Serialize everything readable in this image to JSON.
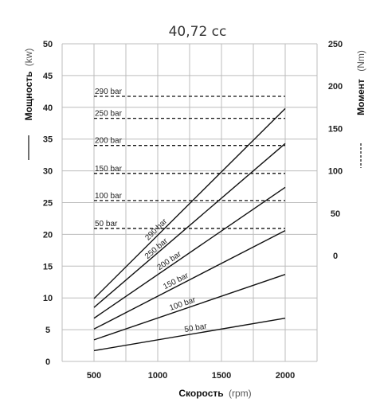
{
  "chart_data": {
    "type": "line",
    "title": "40,72 cc",
    "xlabel": "Скорость",
    "xlabel_unit": "(rpm)",
    "ylabel_left": "Мощность",
    "ylabel_left_unit": "(kw)",
    "ylabel_right": "Момент",
    "ylabel_right_unit": "(Nm)",
    "x_ticks": [
      "500",
      "1000",
      "1500",
      "2000"
    ],
    "y_left_ticks": [
      "0",
      "5",
      "10",
      "15",
      "20",
      "25",
      "30",
      "35",
      "40",
      "45",
      "50"
    ],
    "y_right_ticks": [
      "0",
      "50",
      "100",
      "150",
      "200",
      "250"
    ],
    "xlim": [
      250,
      2250
    ],
    "ylim_left": [
      0,
      50
    ],
    "ylim_right": [
      -125,
      250
    ],
    "grid": true,
    "power_series": [
      {
        "name": "290 bar",
        "x": [
          500,
          2000
        ],
        "y": [
          9.9,
          39.8
        ]
      },
      {
        "name": "250 bar",
        "x": [
          500,
          2000
        ],
        "y": [
          8.5,
          34.3
        ]
      },
      {
        "name": "200 bar",
        "x": [
          500,
          2000
        ],
        "y": [
          6.8,
          27.4
        ]
      },
      {
        "name": "150 bar",
        "x": [
          500,
          2000
        ],
        "y": [
          5.1,
          20.6
        ]
      },
      {
        "name": "100 bar",
        "x": [
          500,
          2000
        ],
        "y": [
          3.4,
          13.7
        ]
      },
      {
        "name": "50 bar",
        "x": [
          500,
          2000
        ],
        "y": [
          1.7,
          6.8
        ]
      }
    ],
    "torque_series": [
      {
        "name": "290 bar",
        "x": [
          500,
          2000
        ],
        "y": [
          188,
          188
        ]
      },
      {
        "name": "250 bar",
        "x": [
          500,
          2000
        ],
        "y": [
          162,
          162
        ]
      },
      {
        "name": "200 bar",
        "x": [
          500,
          2000
        ],
        "y": [
          130,
          130
        ]
      },
      {
        "name": "150 bar",
        "x": [
          500,
          2000
        ],
        "y": [
          97,
          97
        ]
      },
      {
        "name": "100 bar",
        "x": [
          500,
          2000
        ],
        "y": [
          65,
          65
        ]
      },
      {
        "name": "50 bar",
        "x": [
          500,
          2000
        ],
        "y": [
          32,
          32
        ]
      }
    ],
    "legend": {
      "solid": "Мощность",
      "dashed": "Момент"
    }
  },
  "colors": {
    "line": "#111111",
    "grid": "#bcbcbc",
    "text": "#222222"
  }
}
